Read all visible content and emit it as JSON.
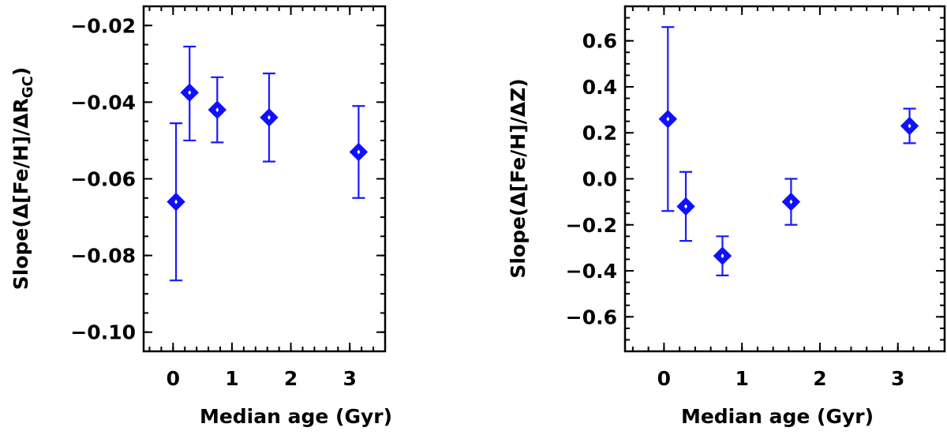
{
  "chart_data": [
    {
      "type": "scatter",
      "id": "rgc",
      "xlabel": "Median age (Gyr)",
      "ylabel_main": "Slope(Δ[Fe/H]/ΔR",
      "ylabel_sub": "GC",
      "ylabel_end": ")",
      "xlim": [
        -0.5,
        3.6
      ],
      "ylim": [
        -0.105,
        -0.015
      ],
      "x_ticks": [
        0,
        1,
        2,
        3
      ],
      "x_tick_labels": [
        "0",
        "1",
        "2",
        "3"
      ],
      "y_ticks": [
        -0.1,
        -0.08,
        -0.06,
        -0.04,
        -0.02
      ],
      "y_tick_labels": [
        "−0.10",
        "−0.08",
        "−0.06",
        "−0.04",
        "−0.02"
      ],
      "color": "#1010ff",
      "points": [
        {
          "x": 0.05,
          "y": -0.066,
          "err_low": -0.0865,
          "err_high": -0.0455
        },
        {
          "x": 0.28,
          "y": -0.0375,
          "err_low": -0.05,
          "err_high": -0.0255
        },
        {
          "x": 0.75,
          "y": -0.042,
          "err_low": -0.0505,
          "err_high": -0.0335
        },
        {
          "x": 1.63,
          "y": -0.044,
          "err_low": -0.0555,
          "err_high": -0.0325
        },
        {
          "x": 3.15,
          "y": -0.053,
          "err_low": -0.065,
          "err_high": -0.041
        }
      ]
    },
    {
      "type": "scatter",
      "id": "z",
      "xlabel": "Median age (Gyr)",
      "ylabel_main": "Slope(Δ[Fe/H]/ΔZ)",
      "ylabel_sub": "",
      "ylabel_end": "",
      "xlim": [
        -0.5,
        3.6
      ],
      "ylim": [
        -0.75,
        0.75
      ],
      "x_ticks": [
        0,
        1,
        2,
        3
      ],
      "x_tick_labels": [
        "0",
        "1",
        "2",
        "3"
      ],
      "y_ticks": [
        -0.6,
        -0.4,
        -0.2,
        0.0,
        0.2,
        0.4,
        0.6
      ],
      "y_tick_labels": [
        "−0.6",
        "−0.4",
        "−0.2",
        "0.0",
        "0.2",
        "0.4",
        "0.6"
      ],
      "color": "#1010ff",
      "points": [
        {
          "x": 0.05,
          "y": 0.26,
          "err_low": -0.14,
          "err_high": 0.66
        },
        {
          "x": 0.28,
          "y": -0.12,
          "err_low": -0.27,
          "err_high": 0.03
        },
        {
          "x": 0.75,
          "y": -0.335,
          "err_low": -0.42,
          "err_high": -0.25
        },
        {
          "x": 1.63,
          "y": -0.1,
          "err_low": -0.2,
          "err_high": 0.0
        },
        {
          "x": 3.15,
          "y": 0.23,
          "err_low": 0.155,
          "err_high": 0.305
        }
      ]
    }
  ]
}
